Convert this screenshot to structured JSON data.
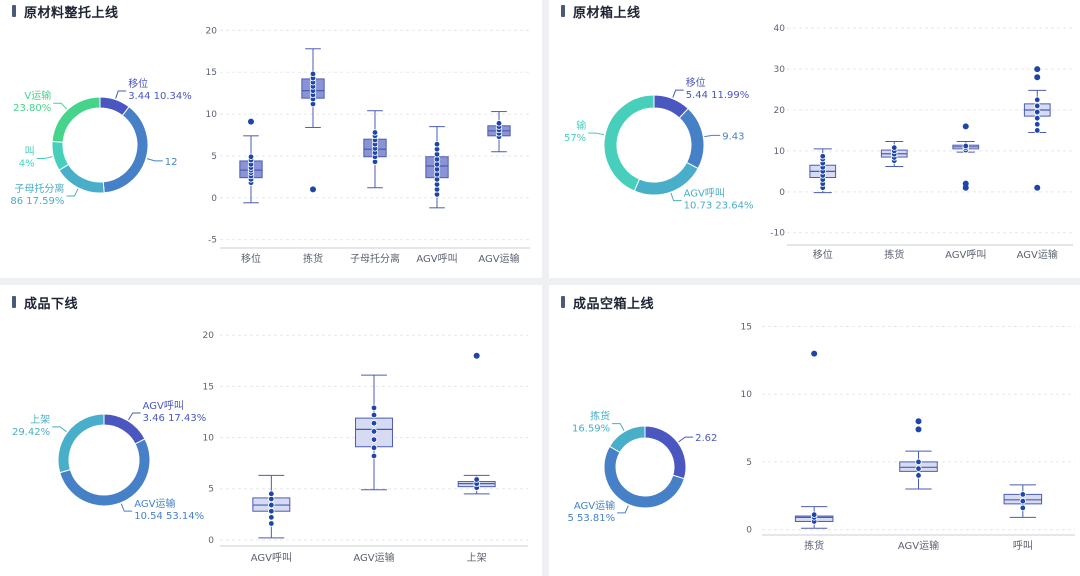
{
  "colors": {
    "donut": [
      "#4a57c1",
      "#4681c8",
      "#49aec9",
      "#48cfbc",
      "#46d48c"
    ],
    "box_fill": "#8a93d4",
    "box_fill_light": "#d6dbf1",
    "box_stroke": "#4b5cb4",
    "point": "#1e45a8",
    "grid": "#e6e8ee",
    "axis_text": "#5c6272"
  },
  "panels": [
    {
      "title": "原材料整托上线",
      "donut": {
        "slices": [
          {
            "pct": 10.34,
            "label_line1": "移位",
            "label_line2": "3.44 10.34%",
            "side": "right"
          },
          {
            "pct": 38.27,
            "label_line1": "",
            "label_line2": "12",
            "side": "right"
          },
          {
            "pct": 17.59,
            "label_line1": "子母托分离",
            "label_line2": "86 17.59%",
            "side": "left"
          },
          {
            "pct": 10.0,
            "label_line1": "叫",
            "label_line2": "4%",
            "side": "left"
          },
          {
            "pct": 23.8,
            "label_line1": "V运输",
            "label_line2": "23.80%",
            "side": "left"
          }
        ]
      },
      "chart_data": {
        "type": "box",
        "categories": [
          "移位",
          "拣货",
          "子母托分离",
          "AGV呼叫",
          "AGV运输"
        ],
        "ylim": [
          -6,
          21
        ],
        "yticks": [
          -5,
          0,
          5,
          10,
          15,
          20
        ],
        "boxes": [
          {
            "lo": -0.6,
            "q1": 2.4,
            "med": 3.3,
            "q3": 4.4,
            "hi": 7.4,
            "outliers": [
              9.1
            ],
            "points": [
              1.8,
              2.2,
              2.6,
              3.0,
              3.3,
              3.6,
              4.0,
              4.5,
              4.9
            ]
          },
          {
            "lo": 8.4,
            "q1": 11.9,
            "med": 12.8,
            "q3": 14.2,
            "hi": 17.8,
            "outliers": [
              1.0
            ],
            "points": [
              11.2,
              11.8,
              12.3,
              12.8,
              13.3,
              13.8,
              14.3,
              14.8
            ]
          },
          {
            "lo": 1.2,
            "q1": 4.9,
            "med": 5.8,
            "q3": 7.0,
            "hi": 10.4,
            "outliers": [],
            "points": [
              4.3,
              4.9,
              5.4,
              5.9,
              6.4,
              6.9,
              7.4,
              7.8
            ]
          },
          {
            "lo": -1.2,
            "q1": 2.4,
            "med": 3.8,
            "q3": 4.9,
            "hi": 8.5,
            "outliers": [],
            "points": [
              0.4,
              1.0,
              1.6,
              2.2,
              2.8,
              3.4,
              4.0,
              4.6,
              5.2,
              5.8,
              6.4
            ]
          },
          {
            "lo": 5.5,
            "q1": 7.4,
            "med": 8.0,
            "q3": 8.6,
            "hi": 10.3,
            "outliers": [],
            "points": [
              7.3,
              7.7,
              8.1,
              8.5,
              8.9
            ]
          }
        ]
      }
    },
    {
      "title": "原材箱上线",
      "donut": {
        "slices": [
          {
            "pct": 11.99,
            "label_line1": "移位",
            "label_line2": "5.44 11.99%",
            "side": "right"
          },
          {
            "pct": 20.8,
            "label_line1": "",
            "label_line2": "9.43",
            "side": "right"
          },
          {
            "pct": 23.64,
            "label_line1": "AGV呼叫",
            "label_line2": "10.73 23.64%",
            "side": "right"
          },
          {
            "pct": 43.57,
            "label_line1": "输",
            "label_line2": "57%",
            "side": "left"
          }
        ]
      },
      "chart_data": {
        "type": "box",
        "categories": [
          "移位",
          "拣货",
          "AGV呼叫",
          "AGV运输"
        ],
        "ylim": [
          -13,
          42
        ],
        "yticks": [
          -10,
          0,
          10,
          20,
          30,
          40
        ],
        "boxes": [
          {
            "lo": -0.2,
            "q1": 3.5,
            "med": 5.0,
            "q3": 6.5,
            "hi": 10.5,
            "outliers": [],
            "points": [
              1.0,
              2.0,
              3.0,
              4.0,
              5.0,
              6.0,
              7.0,
              8.0,
              8.7
            ]
          },
          {
            "lo": 6.2,
            "q1": 8.5,
            "med": 9.3,
            "q3": 10.2,
            "hi": 12.3,
            "outliers": [],
            "points": [
              7.6,
              8.4,
              9.2,
              10.0,
              10.8
            ]
          },
          {
            "lo": 9.7,
            "q1": 10.5,
            "med": 11.0,
            "q3": 11.4,
            "hi": 12.3,
            "outliers": [
              16.0,
              2.0,
              1.0
            ],
            "points": [
              10.2,
              10.8,
              11.2
            ]
          },
          {
            "lo": 14.5,
            "q1": 18.5,
            "med": 20.0,
            "q3": 21.5,
            "hi": 24.8,
            "outliers": [
              30.0,
              28.0,
              1.0
            ],
            "points": [
              15.0,
              16.5,
              18.0,
              19.5,
              21.0,
              22.5
            ]
          }
        ]
      }
    },
    {
      "title": "成品下线",
      "donut": {
        "slices": [
          {
            "pct": 17.43,
            "label_line1": "AGV呼叫",
            "label_line2": "3.46 17.43%",
            "side": "right"
          },
          {
            "pct": 53.14,
            "label_line1": "AGV运输",
            "label_line2": "10.54 53.14%",
            "side": "right"
          },
          {
            "pct": 29.42,
            "label_line1": "上架",
            "label_line2": "29.42%",
            "side": "left"
          }
        ]
      },
      "chart_data": {
        "type": "box",
        "categories": [
          "AGV呼叫",
          "AGV运输",
          "上架"
        ],
        "ylim": [
          -0.6,
          21
        ],
        "yticks": [
          0,
          5,
          10,
          15,
          20
        ],
        "boxes": [
          {
            "lo": 0.2,
            "q1": 2.8,
            "med": 3.4,
            "q3": 4.1,
            "hi": 6.3,
            "outliers": [],
            "points": [
              1.6,
              2.2,
              2.8,
              3.4,
              4.0,
              4.5
            ]
          },
          {
            "lo": 4.9,
            "q1": 9.1,
            "med": 10.8,
            "q3": 11.9,
            "hi": 16.1,
            "outliers": [],
            "points": [
              8.2,
              9.0,
              9.8,
              10.6,
              11.4,
              12.2,
              12.9
            ]
          },
          {
            "lo": 4.5,
            "q1": 5.2,
            "med": 5.5,
            "q3": 5.7,
            "hi": 6.3,
            "outliers": [
              18.0
            ],
            "points": [
              5.1,
              5.5,
              5.9
            ]
          }
        ]
      }
    },
    {
      "title": "成品空箱上线",
      "donut": {
        "slices": [
          {
            "pct": 29.6,
            "label_line1": "",
            "label_line2": "2.62",
            "side": "right"
          },
          {
            "pct": 53.81,
            "label_line1": "AGV运输",
            "label_line2": "5 53.81%",
            "side": "left"
          },
          {
            "pct": 16.59,
            "label_line1": "拣货",
            "label_line2": "16.59%",
            "side": "left"
          }
        ]
      },
      "chart_data": {
        "type": "box",
        "categories": [
          "拣货",
          "AGV运输",
          "呼叫"
        ],
        "ylim": [
          -0.4,
          16
        ],
        "yticks": [
          0,
          5,
          10,
          15
        ],
        "boxes": [
          {
            "lo": 0.1,
            "q1": 0.6,
            "med": 0.9,
            "q3": 1.0,
            "hi": 1.7,
            "outliers": [
              13.0
            ],
            "points": [
              0.6,
              0.9,
              1.1
            ]
          },
          {
            "lo": 3.0,
            "q1": 4.3,
            "med": 4.6,
            "q3": 5.0,
            "hi": 5.8,
            "outliers": [
              8.0,
              7.4
            ],
            "points": [
              4.0,
              4.5,
              5.0
            ]
          },
          {
            "lo": 0.9,
            "q1": 1.9,
            "med": 2.2,
            "q3": 2.6,
            "hi": 3.3,
            "outliers": [],
            "points": [
              1.6,
              2.1,
              2.6
            ]
          }
        ]
      }
    }
  ]
}
